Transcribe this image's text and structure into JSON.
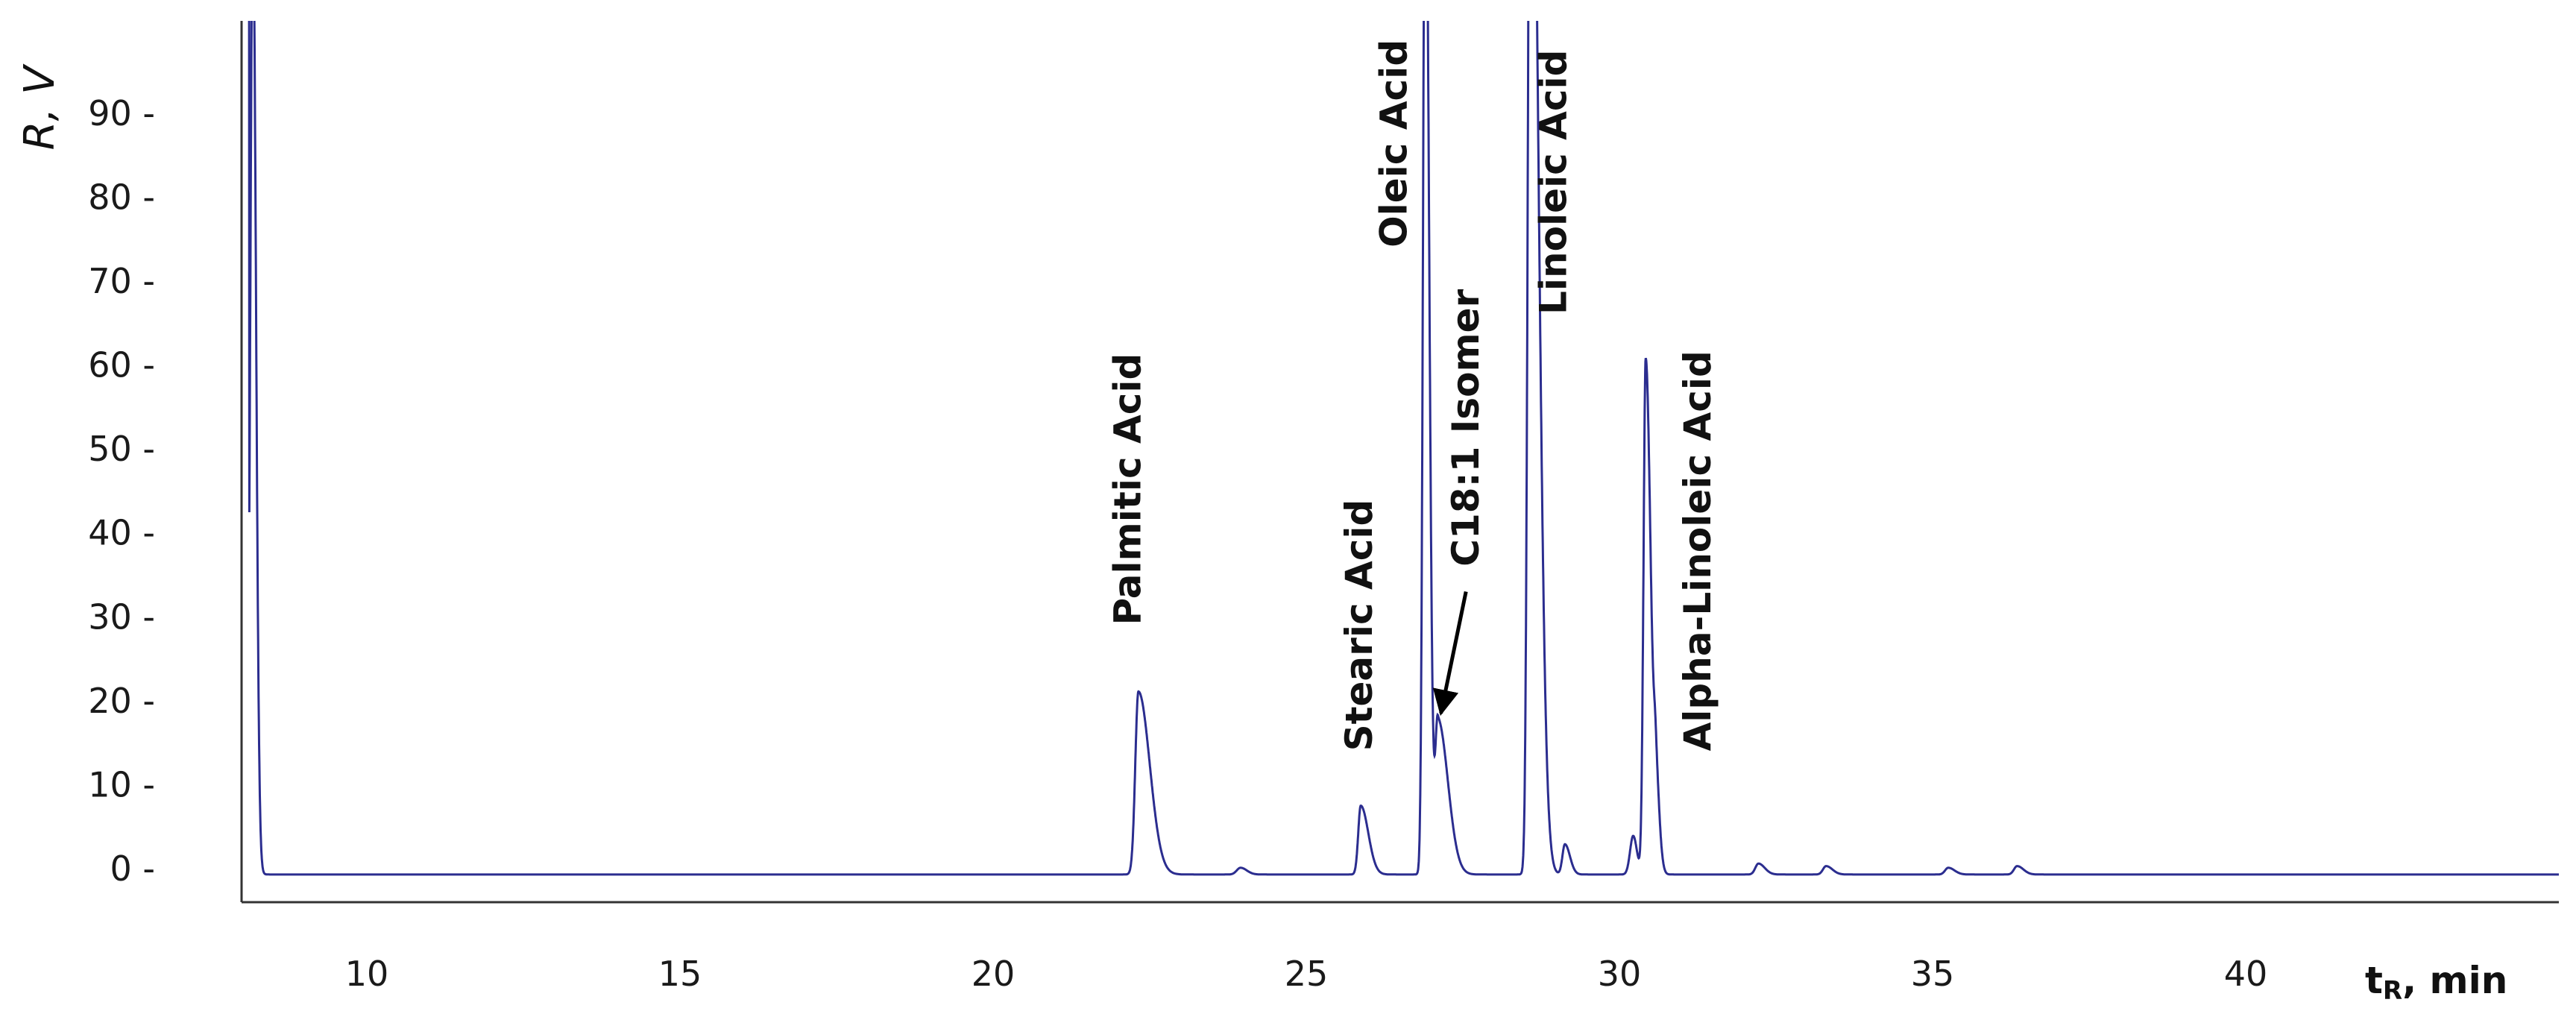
{
  "chart_data": {
    "type": "line",
    "title": "",
    "xlabel_main": "t",
    "xlabel_sub": "R",
    "xlabel_rest": ", min",
    "ylabel": "R, V",
    "xlim": [
      8,
      45
    ],
    "ylim": [
      -4,
      101
    ],
    "x_ticks": [
      10,
      15,
      20,
      25,
      30,
      35,
      40
    ],
    "x_tick_labels": [
      "10",
      "15",
      "20",
      "25",
      "30",
      "35",
      "40"
    ],
    "y_ticks": [
      0,
      10,
      20,
      30,
      40,
      50,
      60,
      70,
      80,
      90
    ],
    "y_tick_labels": [
      "0 -",
      "10 -",
      "20 -",
      "30 -",
      "40 -",
      "50 -",
      "60 -",
      "70 -",
      "80 -",
      "90 -"
    ],
    "grid": false,
    "line_color": "#2b2d8f",
    "baseline": -0.7,
    "peaks": [
      {
        "t": 8.18,
        "height": 115,
        "width": 0.04,
        "tail": 0.05
      },
      {
        "t": 22.32,
        "height": 21.8,
        "width": 0.05,
        "tail": 0.18
      },
      {
        "t": 23.95,
        "height": 0.8,
        "width": 0.06,
        "tail": 0.1
      },
      {
        "t": 25.87,
        "height": 8.2,
        "width": 0.04,
        "tail": 0.12
      },
      {
        "t": 26.9,
        "height": 130,
        "width": 0.035,
        "tail": 0.06
      },
      {
        "t": 27.1,
        "height": 18.5,
        "width": 0.04,
        "tail": 0.16
      },
      {
        "t": 28.58,
        "height": 150,
        "width": 0.04,
        "tail": 0.12
      },
      {
        "t": 29.13,
        "height": 3.6,
        "width": 0.04,
        "tail": 0.08
      },
      {
        "t": 30.22,
        "height": 4.6,
        "width": 0.05,
        "tail": 0.06
      },
      {
        "t": 30.42,
        "height": 61.5,
        "width": 0.035,
        "tail": 0.08
      },
      {
        "t": 30.58,
        "height": 9.5,
        "width": 0.03,
        "tail": 0.06
      },
      {
        "t": 32.22,
        "height": 1.3,
        "width": 0.05,
        "tail": 0.1
      },
      {
        "t": 33.3,
        "height": 1.0,
        "width": 0.05,
        "tail": 0.1
      },
      {
        "t": 35.25,
        "height": 0.8,
        "width": 0.05,
        "tail": 0.1
      },
      {
        "t": 36.35,
        "height": 1.0,
        "width": 0.05,
        "tail": 0.1
      }
    ],
    "annotations": [
      {
        "text": "Palmitic Acid",
        "x": 22.35,
        "y": 29
      },
      {
        "text": "Stearic Acid",
        "x": 26.05,
        "y": 14
      },
      {
        "text": "Oleic Acid",
        "x": 26.6,
        "y": 74
      },
      {
        "text": "C18:1 Isomer",
        "x": 27.75,
        "y": 36
      },
      {
        "text": "Linoleic Acid",
        "x": 29.15,
        "y": 66
      },
      {
        "text": "Alpha-Linoleic Acid",
        "x": 31.45,
        "y": 14
      }
    ],
    "arrow": {
      "from": [
        27.55,
        33
      ],
      "to": [
        27.15,
        18.5
      ]
    }
  }
}
